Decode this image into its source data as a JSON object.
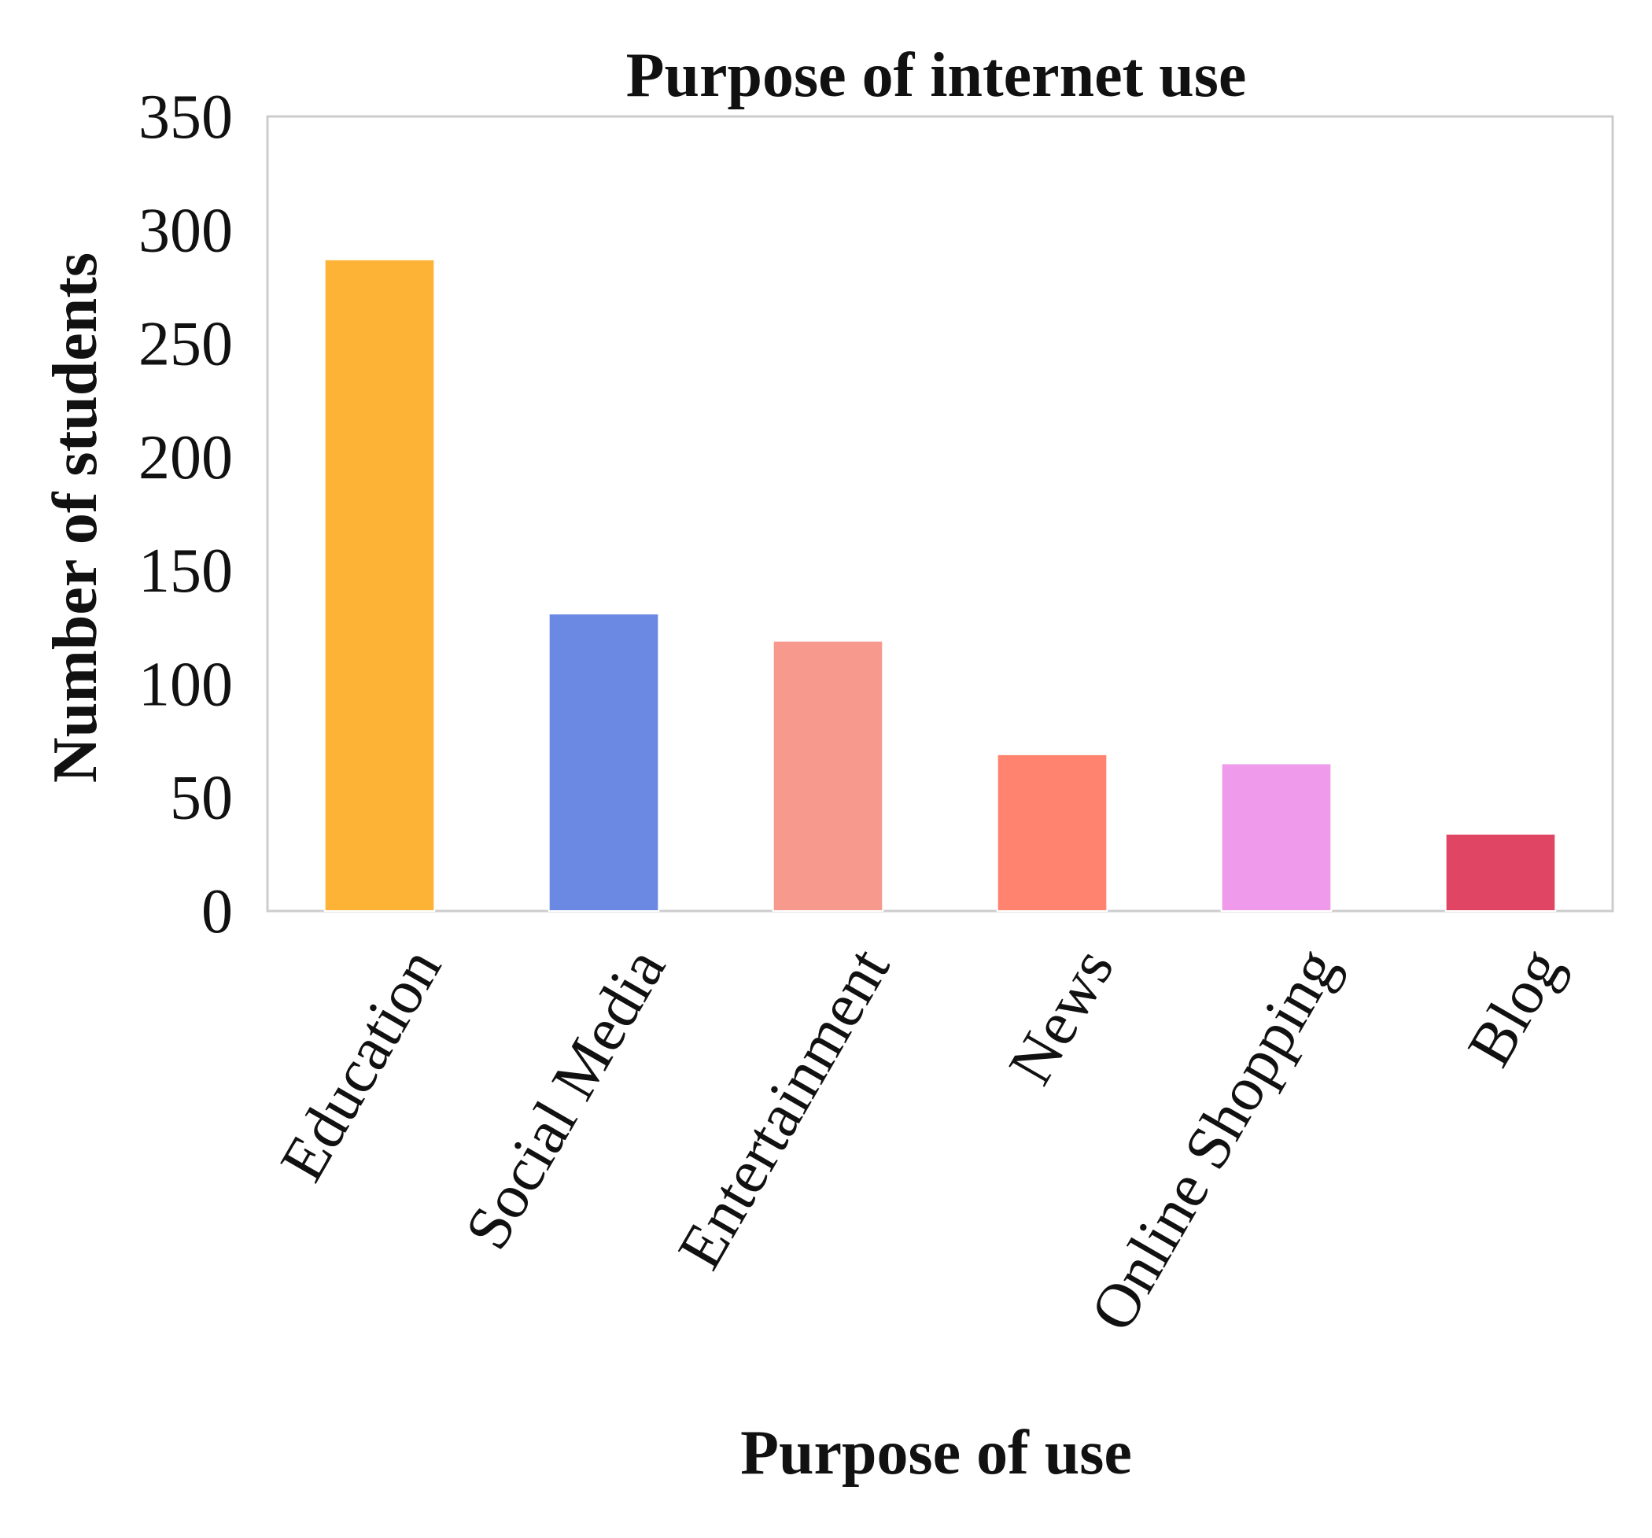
{
  "chart_data": {
    "type": "bar",
    "title": "Purpose of internet use",
    "xlabel": "Purpose of use",
    "ylabel": "Number of students",
    "categories": [
      "Education",
      "Social Media",
      "Entertainment",
      "News",
      "Online Shopping",
      "Blog"
    ],
    "values": [
      287,
      131,
      119,
      69,
      65,
      34
    ],
    "colors": [
      "#FDB436",
      "#6B88E3",
      "#F8998D",
      "#FF836F",
      "#F09AEB",
      "#E04563"
    ],
    "ylim": [
      0,
      350
    ],
    "yticks": [
      0,
      50,
      100,
      150,
      200,
      250,
      300,
      350
    ],
    "ytick_labels": [
      "0",
      "50",
      "100",
      "150",
      "200",
      "250",
      "300",
      "350"
    ],
    "grid": false,
    "frame_color": "#CCCCCC"
  }
}
